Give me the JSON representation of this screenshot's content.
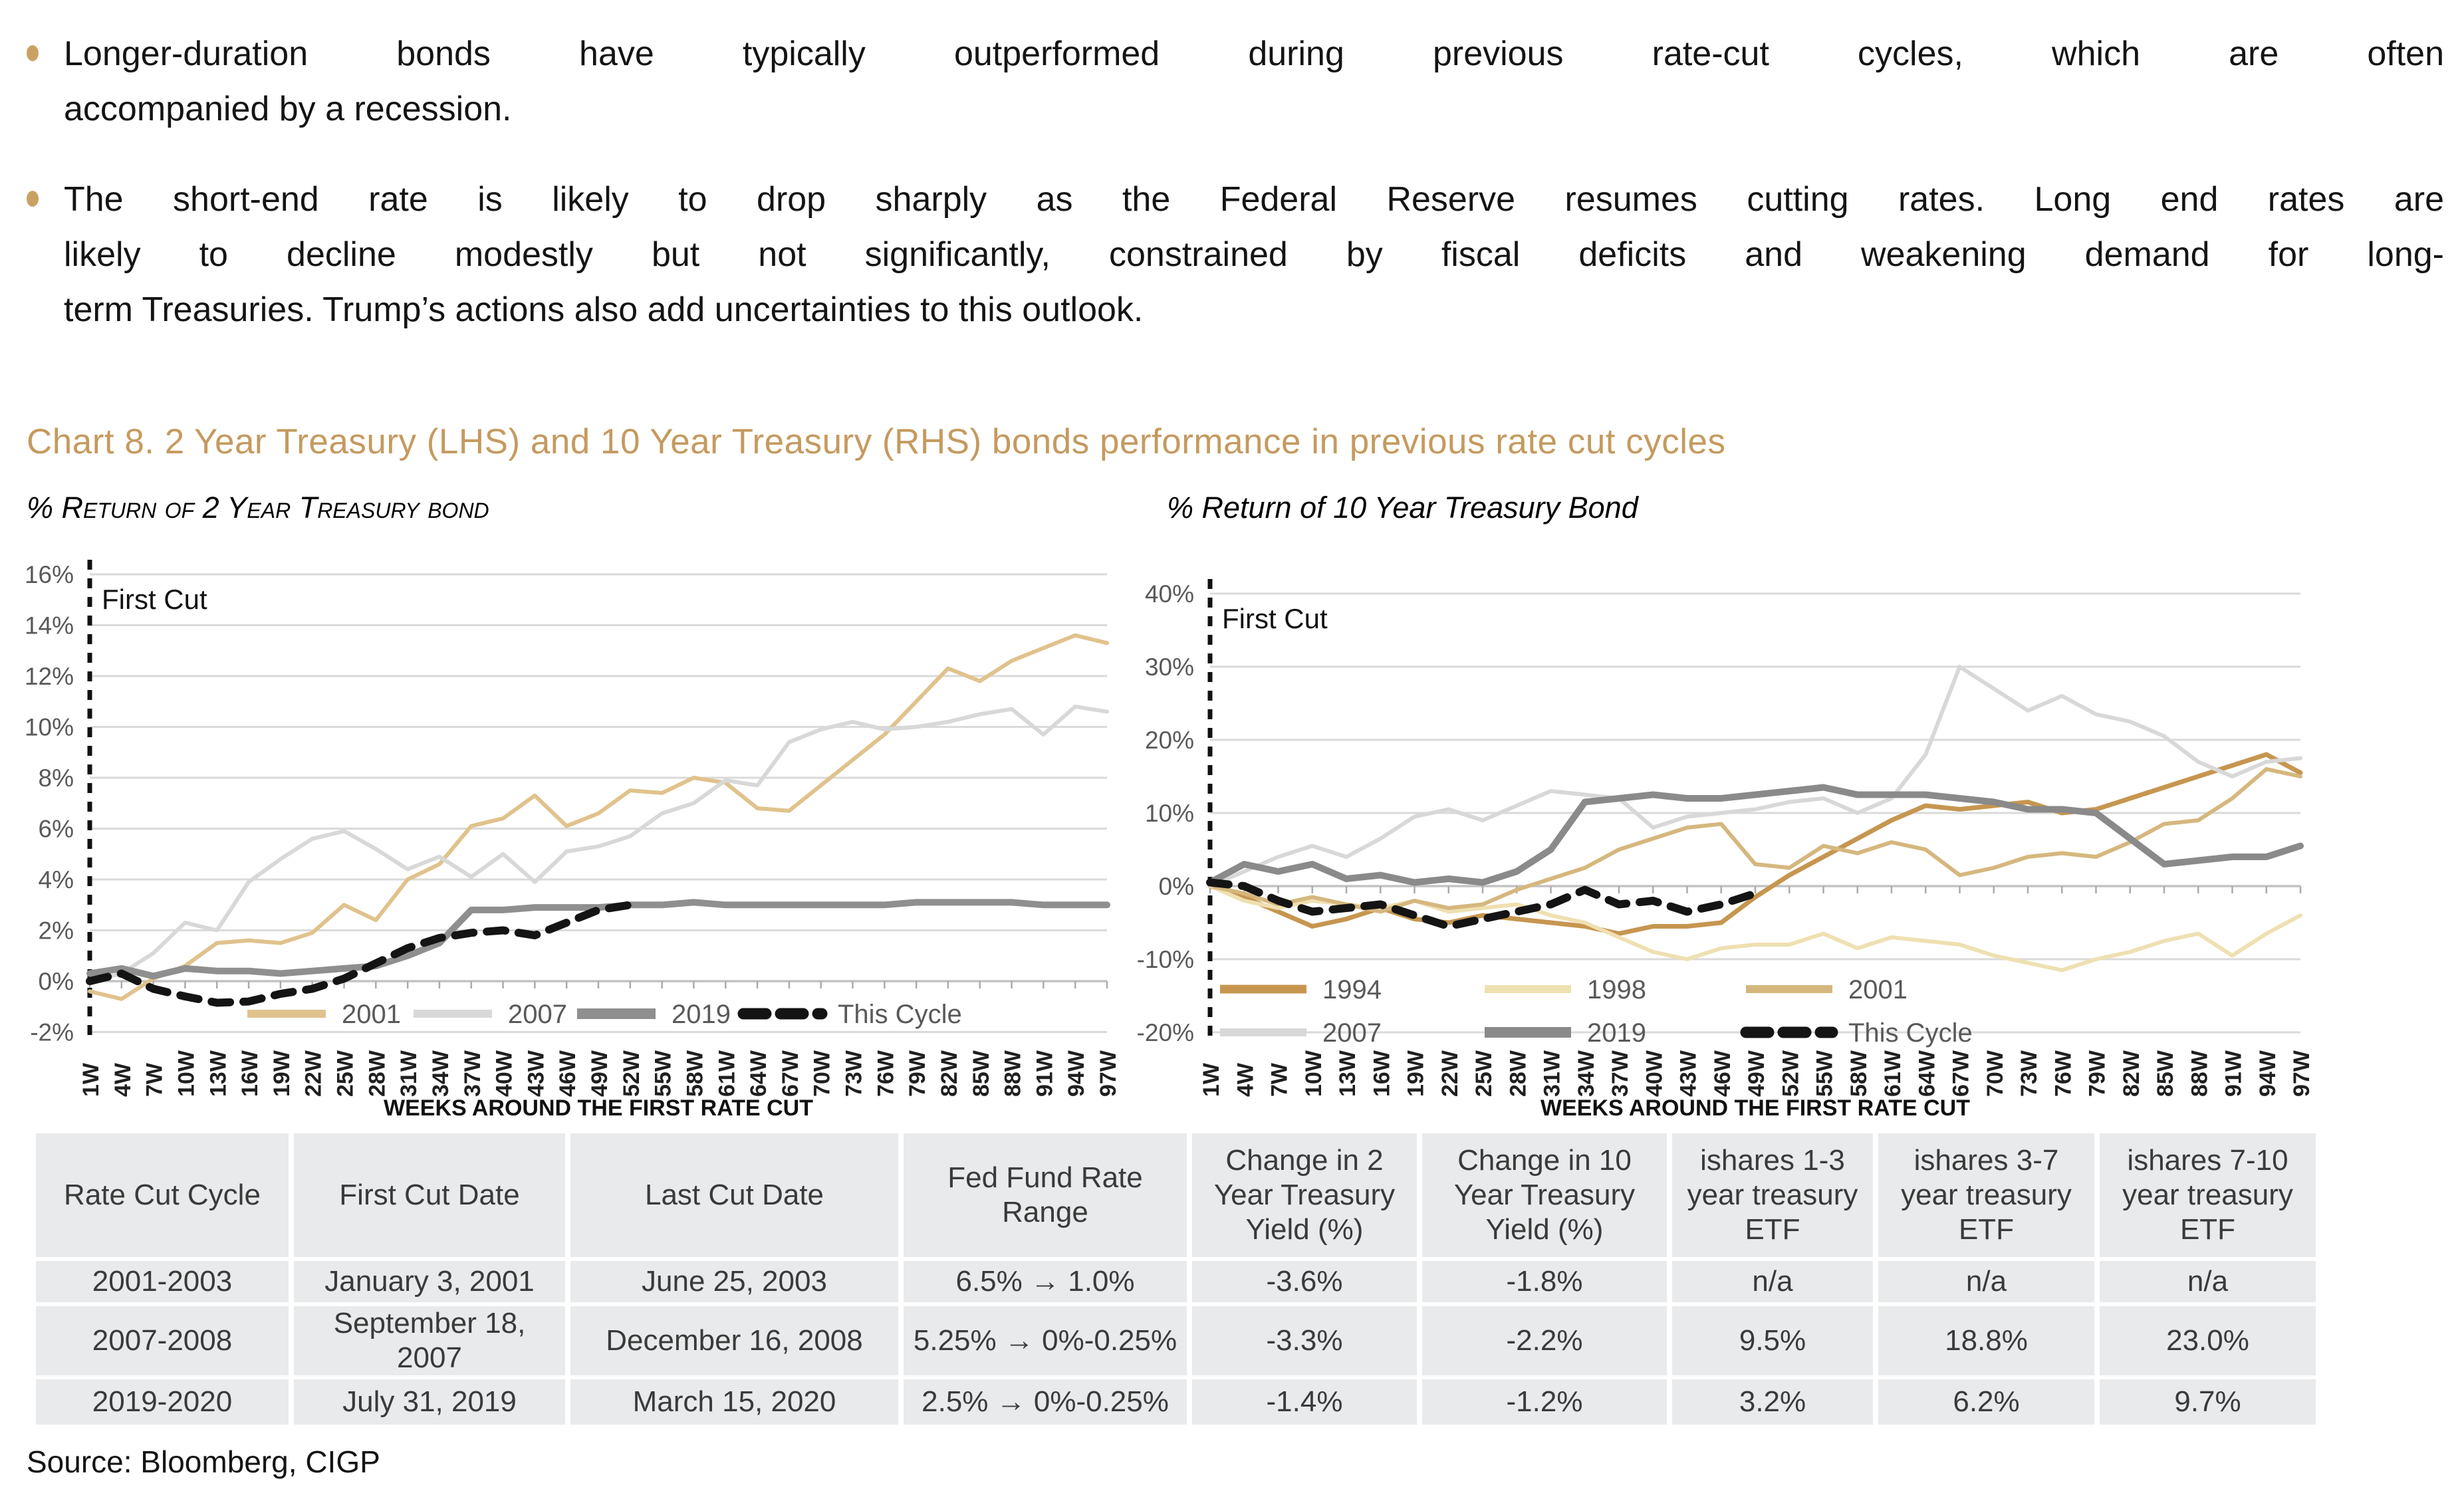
{
  "bullets": [
    {
      "lines": [
        "Longer-duration bonds have typically outperformed during previous rate-cut cycles, which are often",
        "accompanied by a recession."
      ]
    },
    {
      "lines": [
        "The short-end rate is likely to drop sharply as the Federal Reserve resumes cutting rates. Long end rates are",
        "likely to decline modestly but not significantly, constrained by fiscal deficits and weakening demand for long-",
        "term Treasuries. Trump’s actions also add uncertainties to this outlook."
      ]
    }
  ],
  "chart_title": "Chart 8. 2 Year Treasury (LHS) and 10 Year Treasury (RHS) bonds performance in previous rate cut cycles",
  "source": "Source: Bloomberg, CIGP",
  "colors": {
    "accent_tan": "#c59a5f",
    "grid": "#dadada",
    "table_bg": "#e8eaeb",
    "axis_text": "#595959"
  },
  "chart_data": [
    {
      "type": "line",
      "title": "% Return of 2 Year Treasury bond",
      "annotation": "First Cut",
      "xlabel": "WEEKS AROUND THE FIRST RATE CUT",
      "x_ticks": [
        "1W",
        "4W",
        "7W",
        "10W",
        "13W",
        "16W",
        "19W",
        "22W",
        "25W",
        "28W",
        "31W",
        "34W",
        "37W",
        "40W",
        "43W",
        "46W",
        "49W",
        "52W",
        "55W",
        "58W",
        "61W",
        "64W",
        "67W",
        "70W",
        "73W",
        "76W",
        "79W",
        "82W",
        "85W",
        "88W",
        "91W",
        "94W",
        "97W"
      ],
      "ylim": [
        -2,
        16
      ],
      "ystep": 2,
      "y_ticks": [
        "16%",
        "14%",
        "12%",
        "10%",
        "8%",
        "6%",
        "4%",
        "2%",
        "0%",
        "-2%"
      ],
      "grid": true,
      "legend_position": "inside-bottom",
      "series": [
        {
          "name": "2001",
          "color": "#e0c28c",
          "width": 6,
          "dash": null,
          "values": [
            -0.4,
            -0.7,
            0.1,
            0.6,
            1.5,
            1.6,
            1.5,
            1.9,
            3.0,
            2.4,
            4.0,
            4.6,
            6.1,
            6.4,
            7.3,
            6.1,
            6.6,
            7.5,
            7.4,
            8.0,
            7.8,
            6.8,
            6.7,
            7.7,
            8.7,
            9.7,
            11.0,
            12.3,
            11.8,
            12.6,
            13.1,
            13.6,
            13.3
          ]
        },
        {
          "name": "2007",
          "color": "#d8d8d8",
          "width": 6,
          "dash": null,
          "values": [
            0.0,
            0.3,
            1.1,
            2.3,
            2.0,
            3.9,
            4.8,
            5.6,
            5.9,
            5.2,
            4.4,
            4.9,
            4.1,
            5.0,
            3.9,
            5.1,
            5.3,
            5.7,
            6.6,
            7.0,
            7.9,
            7.7,
            9.4,
            9.9,
            10.2,
            9.9,
            10.0,
            10.2,
            10.5,
            10.7,
            9.7,
            10.8,
            10.6
          ]
        },
        {
          "name": "2019",
          "color": "#8f8f8f",
          "width": 10,
          "dash": null,
          "values": [
            0.3,
            0.5,
            0.2,
            0.5,
            0.4,
            0.4,
            0.3,
            0.4,
            0.5,
            0.6,
            1.0,
            1.5,
            2.8,
            2.8,
            2.9,
            2.9,
            2.9,
            3.0,
            3.0,
            3.1,
            3.0,
            3.0,
            3.0,
            3.0,
            3.0,
            3.0,
            3.1,
            3.1,
            3.1,
            3.1,
            3.0,
            3.0,
            3.0
          ]
        },
        {
          "name": "This Cycle",
          "color": "#141414",
          "width": 12,
          "dash": "28 20",
          "values": [
            0.0,
            0.3,
            -0.3,
            -0.6,
            -0.85,
            -0.8,
            -0.5,
            -0.3,
            0.1,
            0.7,
            1.3,
            1.7,
            1.9,
            2.0,
            1.8,
            2.3,
            2.8,
            3.0,
            null,
            null,
            null,
            null,
            null,
            null,
            null,
            null,
            null,
            null,
            null,
            null,
            null,
            null,
            null
          ]
        }
      ]
    },
    {
      "type": "line",
      "title": "% Return of 10 Year Treasury Bond",
      "annotation": "First Cut",
      "xlabel": "WEEKS AROUND THE FIRST RATE CUT",
      "x_ticks": [
        "1W",
        "4W",
        "7W",
        "10W",
        "13W",
        "16W",
        "19W",
        "22W",
        "25W",
        "28W",
        "31W",
        "34W",
        "37W",
        "40W",
        "43W",
        "46W",
        "49W",
        "52W",
        "55W",
        "58W",
        "61W",
        "64W",
        "67W",
        "70W",
        "73W",
        "76W",
        "79W",
        "82W",
        "85W",
        "88W",
        "91W",
        "94W",
        "97W"
      ],
      "ylim": [
        -20,
        40
      ],
      "ystep": 10,
      "y_ticks": [
        "40%",
        "30%",
        "20%",
        "10%",
        "0%",
        "-10%",
        "-20%"
      ],
      "grid": true,
      "legend_position": "inside-bottom",
      "series": [
        {
          "name": "1994",
          "color": "#c69650",
          "width": 7,
          "dash": null,
          "values": [
            0.0,
            -1.5,
            -3.5,
            -5.5,
            -4.5,
            -3.0,
            -4.5,
            -5.0,
            -4.0,
            -4.5,
            -5.0,
            -5.5,
            -6.5,
            -5.5,
            -5.5,
            -5.0,
            -1.5,
            1.5,
            4.0,
            6.5,
            9.0,
            11.0,
            10.5,
            11.0,
            11.5,
            10.0,
            10.5,
            12.0,
            13.5,
            15.0,
            16.5,
            18.0,
            15.5
          ]
        },
        {
          "name": "1998",
          "color": "#efe0b2",
          "width": 6,
          "dash": null,
          "values": [
            0.0,
            -2.0,
            -3.0,
            -2.0,
            -2.5,
            -3.0,
            -2.0,
            -3.5,
            -3.0,
            -2.5,
            -4.0,
            -5.0,
            -7.0,
            -9.0,
            -10.0,
            -8.5,
            -8.0,
            -8.0,
            -6.5,
            -8.5,
            -7.0,
            -7.5,
            -8.0,
            -9.5,
            -10.5,
            -11.5,
            -10.0,
            -9.0,
            -7.5,
            -6.5,
            -9.5,
            -6.5,
            -4.0
          ]
        },
        {
          "name": "2001",
          "color": "#d5b77e",
          "width": 6,
          "dash": null,
          "values": [
            0.0,
            -1.0,
            -2.5,
            -1.5,
            -2.5,
            -3.5,
            -2.0,
            -3.0,
            -2.5,
            -0.5,
            1.0,
            2.5,
            5.0,
            6.5,
            8.0,
            8.5,
            3.0,
            2.5,
            5.5,
            4.5,
            6.0,
            5.0,
            1.5,
            2.5,
            4.0,
            4.5,
            4.0,
            6.0,
            8.5,
            9.0,
            12.0,
            16.0,
            15.0
          ]
        },
        {
          "name": "2007",
          "color": "#d8d8d8",
          "width": 6,
          "dash": null,
          "values": [
            0.0,
            2.0,
            4.0,
            5.5,
            4.0,
            6.5,
            9.5,
            10.5,
            9.0,
            11.0,
            13.0,
            12.5,
            12.0,
            8.0,
            9.5,
            10.0,
            10.5,
            11.5,
            12.0,
            10.0,
            12.0,
            18.0,
            30.0,
            27.0,
            24.0,
            26.0,
            23.5,
            22.5,
            20.5,
            17.0,
            15.0,
            17.0,
            17.5
          ]
        },
        {
          "name": "2019",
          "color": "#8a8a8a",
          "width": 10,
          "dash": null,
          "values": [
            0.5,
            3.0,
            2.0,
            3.0,
            1.0,
            1.5,
            0.5,
            1.0,
            0.5,
            2.0,
            5.0,
            11.5,
            12.0,
            12.5,
            12.0,
            12.0,
            12.5,
            13.0,
            13.5,
            12.5,
            12.5,
            12.5,
            12.0,
            11.5,
            10.5,
            10.5,
            10.0,
            6.5,
            3.0,
            3.5,
            4.0,
            4.0,
            5.5
          ]
        },
        {
          "name": "This Cycle",
          "color": "#141414",
          "width": 12,
          "dash": "28 20",
          "values": [
            0.5,
            0.0,
            -2.0,
            -3.5,
            -3.0,
            -2.5,
            -4.0,
            -5.5,
            -4.5,
            -3.5,
            -2.5,
            -0.5,
            -2.5,
            -2.0,
            -3.5,
            -2.5,
            -1.0,
            null,
            null,
            null,
            null,
            null,
            null,
            null,
            null,
            null,
            null,
            null,
            null,
            null,
            null,
            null,
            null
          ]
        }
      ]
    }
  ],
  "table": {
    "headers": [
      "Rate Cut Cycle",
      "First Cut Date",
      "Last Cut Date",
      "Fed Fund Rate Range",
      "Change in 2 Year Treasury Yield (%)",
      "Change in 10 Year Treasury Yield (%)",
      "ishares 1-3 year treasury ETF",
      "ishares 3-7 year treasury ETF",
      "ishares 7-10 year treasury ETF"
    ],
    "rows": [
      [
        "2001-2003",
        "January 3, 2001",
        "June 25, 2003",
        "6.5% → 1.0%",
        "-3.6%",
        "-1.8%",
        "n/a",
        "n/a",
        "n/a"
      ],
      [
        "2007-2008",
        "September 18, 2007",
        "December 16, 2008",
        "5.25% → 0%-0.25%",
        "-3.3%",
        "-2.2%",
        "9.5%",
        "18.8%",
        "23.0%"
      ],
      [
        "2019-2020",
        "July 31, 2019",
        "March 15, 2020",
        "2.5% → 0%-0.25%",
        "-1.4%",
        "-1.2%",
        "3.2%",
        "6.2%",
        "9.7%"
      ]
    ]
  }
}
